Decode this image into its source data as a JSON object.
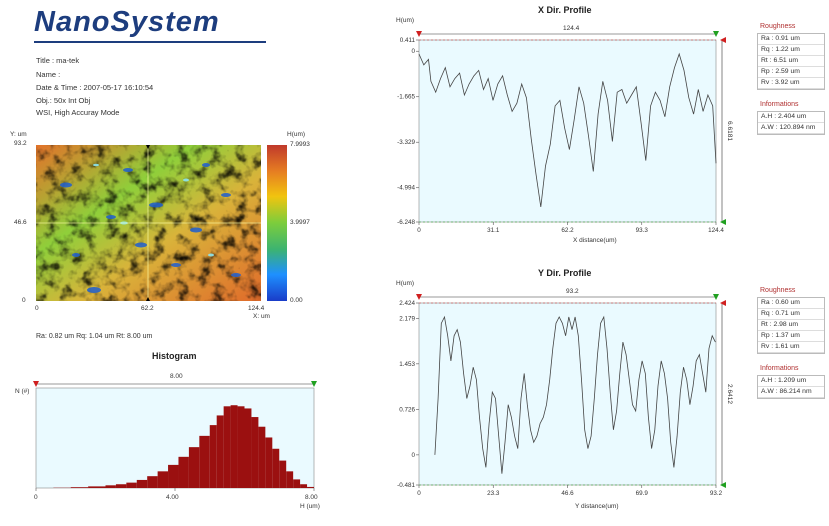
{
  "header": {
    "logo": "NanoSystem",
    "title": "Title : ma-tek",
    "name": "Name :",
    "date": "Date & Time : 2007-05-17 16:10:54",
    "obj": "Obj.: 50x Int Obj",
    "mode": "WSI, High Accuray Mode"
  },
  "map": {
    "y_unit": "Y: um",
    "h_unit": "H(um)",
    "x_unit": "X: um",
    "y_ticks": [
      "93.2",
      "46.6",
      "0"
    ],
    "x_ticks": [
      "0",
      "62.2",
      "124.4"
    ],
    "scale_ticks": [
      "7.9993",
      "3.9997",
      "0.00"
    ],
    "scale_colors": [
      "#c0392b",
      "#e67e22",
      "#f1c40f",
      "#7ccd3c",
      "#3cb371",
      "#1e90ff",
      "#1a3cc8"
    ],
    "stats": "Ra: 0.82 um   Rq: 1.04 um   Rt: 8.00 um"
  },
  "histogram": {
    "title": "Histogram",
    "span_label": "8.00",
    "y_label": "N (#)",
    "x_label": "H (um)",
    "x_ticks": [
      "0",
      "4.00",
      "8.00"
    ]
  },
  "x_profile": {
    "title": "X Dir. Profile",
    "y_unit": "H(um)",
    "span_label": "124.4",
    "height_label": "6.6181",
    "x_label": "X distance(um)",
    "roughness_title": "Roughness",
    "roughness": [
      "Ra : 0.91 um",
      "Rq : 1.22 um",
      "Rt : 6.51 um",
      "Rp : 2.59 um",
      "Rv : 3.92 um"
    ],
    "info_title": "Informations",
    "info": [
      "A.H : 2.404 um",
      "A.W : 120.894 nm"
    ]
  },
  "y_profile": {
    "title": "Y Dir. Profile",
    "y_unit": "H(um)",
    "span_label": "93.2",
    "height_label": "2.6412",
    "x_label": "Y distance(um)",
    "roughness_title": "Roughness",
    "roughness": [
      "Ra : 0.60 um",
      "Rq : 0.71 um",
      "Rt : 2.98 um",
      "Rp : 1.37 um",
      "Rv : 1.61 um"
    ],
    "info_title": "Informations",
    "info": [
      "A.H : 1.209 um",
      "A.W : 86.214 nm"
    ]
  },
  "chart_data": [
    {
      "type": "line",
      "title": "X Dir. Profile",
      "xlabel": "X distance(um)",
      "ylabel": "H(um)",
      "xlim": [
        0,
        124.4
      ],
      "ylim": [
        -6.248,
        0.411
      ],
      "x_ticks": [
        "0",
        "31.1",
        "62.2",
        "93.3",
        "124.4"
      ],
      "y_ticks": [
        "0.411",
        "0",
        "-1.665",
        "-3.329",
        "-4.994",
        "-6.248"
      ],
      "series": [
        {
          "x": [
            0,
            2,
            4,
            5,
            7,
            9,
            11,
            13,
            15,
            17,
            19,
            21,
            23,
            25,
            27,
            29,
            31,
            33,
            35,
            37,
            39,
            41,
            43,
            45,
            47,
            49,
            51,
            53,
            55,
            57,
            59,
            61,
            63,
            65,
            67,
            69,
            71,
            73,
            75,
            77,
            79,
            81,
            83,
            85,
            87,
            89,
            91,
            93,
            95,
            97,
            99,
            101,
            103,
            105,
            107,
            109,
            111,
            113,
            115,
            117,
            119,
            121,
            123,
            124.4
          ],
          "y": [
            -0.1,
            -0.5,
            -0.3,
            -1.1,
            -1.5,
            -1.0,
            -0.6,
            -1.3,
            -1.0,
            -0.8,
            -1.6,
            -1.2,
            -0.9,
            -0.7,
            -1.4,
            -1.0,
            -1.8,
            -1.2,
            -0.9,
            -1.6,
            -2.2,
            -1.9,
            -1.2,
            -1.7,
            -3.2,
            -4.5,
            -5.7,
            -4.2,
            -3.4,
            -2.0,
            -1.8,
            -2.8,
            -3.6,
            -2.5,
            -1.3,
            -1.9,
            -3.1,
            -4.4,
            -2.3,
            -1.1,
            -1.8,
            -3.3,
            -1.5,
            -1.4,
            -1.9,
            -1.6,
            -1.3,
            -2.6,
            -4.0,
            -2.0,
            -1.5,
            -1.8,
            -2.4,
            -1.3,
            -0.6,
            -0.1,
            -0.7,
            -1.7,
            -2.3,
            -1.4,
            -2.2,
            -1.6,
            -2.0,
            -4.1
          ]
        }
      ]
    },
    {
      "type": "line",
      "title": "Y Dir. Profile",
      "xlabel": "Y distance(um)",
      "ylabel": "H(um)",
      "xlim": [
        0,
        93.2
      ],
      "ylim": [
        -0.481,
        2.424
      ],
      "x_ticks": [
        "0",
        "23.3",
        "46.6",
        "69.9",
        "93.2"
      ],
      "y_ticks": [
        "2.424",
        "2.179",
        "1.453",
        "0.726",
        "0",
        "-0.481"
      ],
      "series": [
        {
          "x": [
            5,
            6,
            7,
            8,
            9,
            10,
            11,
            12,
            13,
            14,
            15,
            16,
            17,
            18,
            19,
            20,
            21,
            22,
            23,
            24,
            25,
            26,
            27,
            28,
            29,
            30,
            31,
            32,
            33,
            34,
            35,
            36,
            37,
            38,
            39,
            40,
            41,
            42,
            43,
            44,
            45,
            46,
            47,
            48,
            49,
            50,
            51,
            52,
            53,
            54,
            55,
            56,
            57,
            58,
            59,
            60,
            61,
            62,
            63,
            64,
            65,
            66,
            67,
            68,
            69,
            70,
            71,
            72,
            73,
            74,
            75,
            76,
            77,
            78,
            79,
            80,
            81,
            82,
            83,
            84,
            85,
            86,
            87,
            88,
            89,
            90,
            91,
            92,
            93
          ],
          "y": [
            0,
            0.9,
            2.1,
            2.2,
            1.9,
            1.5,
            1.9,
            2.0,
            1.8,
            1.3,
            0.9,
            1.1,
            1.4,
            1.2,
            0.6,
            0.1,
            -0.2,
            0.5,
            1.0,
            0.9,
            0.3,
            -0.3,
            0.2,
            0.8,
            0.6,
            0.3,
            0.1,
            0.9,
            1.3,
            0.8,
            0.4,
            0.2,
            0.3,
            0.5,
            0.6,
            0.8,
            1.2,
            1.7,
            2.1,
            2.2,
            2.1,
            1.9,
            2.2,
            2.0,
            2.2,
            1.9,
            1.2,
            0.4,
            0.1,
            0.3,
            0.9,
            1.6,
            2.1,
            2.2,
            1.7,
            1.0,
            0.4,
            0.7,
            1.3,
            1.8,
            1.6,
            1.2,
            0.8,
            0.7,
            1.2,
            1.5,
            1.3,
            0.6,
            0.1,
            0.4,
            1.1,
            1.5,
            1.3,
            0.9,
            0.2,
            -0.2,
            0.3,
            1.0,
            1.4,
            1.2,
            0.8,
            1.1,
            1.5,
            1.6,
            1.3,
            1.0,
            1.7,
            1.9,
            1.8
          ]
        }
      ]
    },
    {
      "type": "bar",
      "title": "Histogram",
      "xlabel": "H (um)",
      "ylabel": "N (#)",
      "xlim": [
        0,
        8.0
      ],
      "x": [
        0,
        0.5,
        1.0,
        1.5,
        2.0,
        2.3,
        2.6,
        2.9,
        3.2,
        3.5,
        3.8,
        4.1,
        4.4,
        4.7,
        5.0,
        5.2,
        5.4,
        5.6,
        5.8,
        6.0,
        6.2,
        6.4,
        6.6,
        6.8,
        7.0,
        7.2,
        7.4,
        7.6,
        7.8,
        8.0
      ],
      "values": [
        0,
        0,
        0.5,
        1,
        2,
        3,
        4,
        6,
        9,
        13,
        18,
        25,
        33,
        43,
        54,
        63,
        72,
        80,
        74,
        78,
        70,
        62,
        52,
        42,
        31,
        20,
        11,
        5,
        2,
        0
      ]
    }
  ]
}
